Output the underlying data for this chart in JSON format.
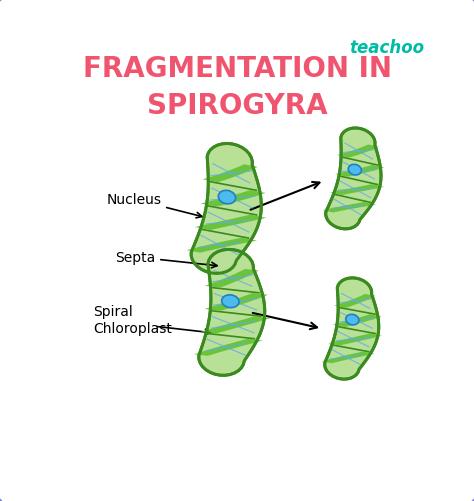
{
  "title_line1": "FRAGMENTATION IN",
  "title_line2": "SPIROGYRA",
  "title_color": "#F05570",
  "watermark": "teachoo",
  "watermark_color": "#00BCA4",
  "bg_outer": "#8080D0",
  "bg_inner": "#FFFFFF",
  "label_nucleus": "Nucleus",
  "label_septa": "Septa",
  "label_spiral_line1": "Spiral",
  "label_spiral_line2": "Chloroplast",
  "cell_outline_color": "#3A8A20",
  "cell_fill_color": "#B8E096",
  "chloroplast_band_color": "#5CBF2A",
  "chloroplast_line_color": "#5CBF2A",
  "nucleus_fill": "#4DBBEE",
  "nucleus_edge": "#2080C0",
  "septa_color": "#3A8A20",
  "cross_line_color": "#60AAEE",
  "label_fontsize": 10,
  "title_fontsize": 20
}
